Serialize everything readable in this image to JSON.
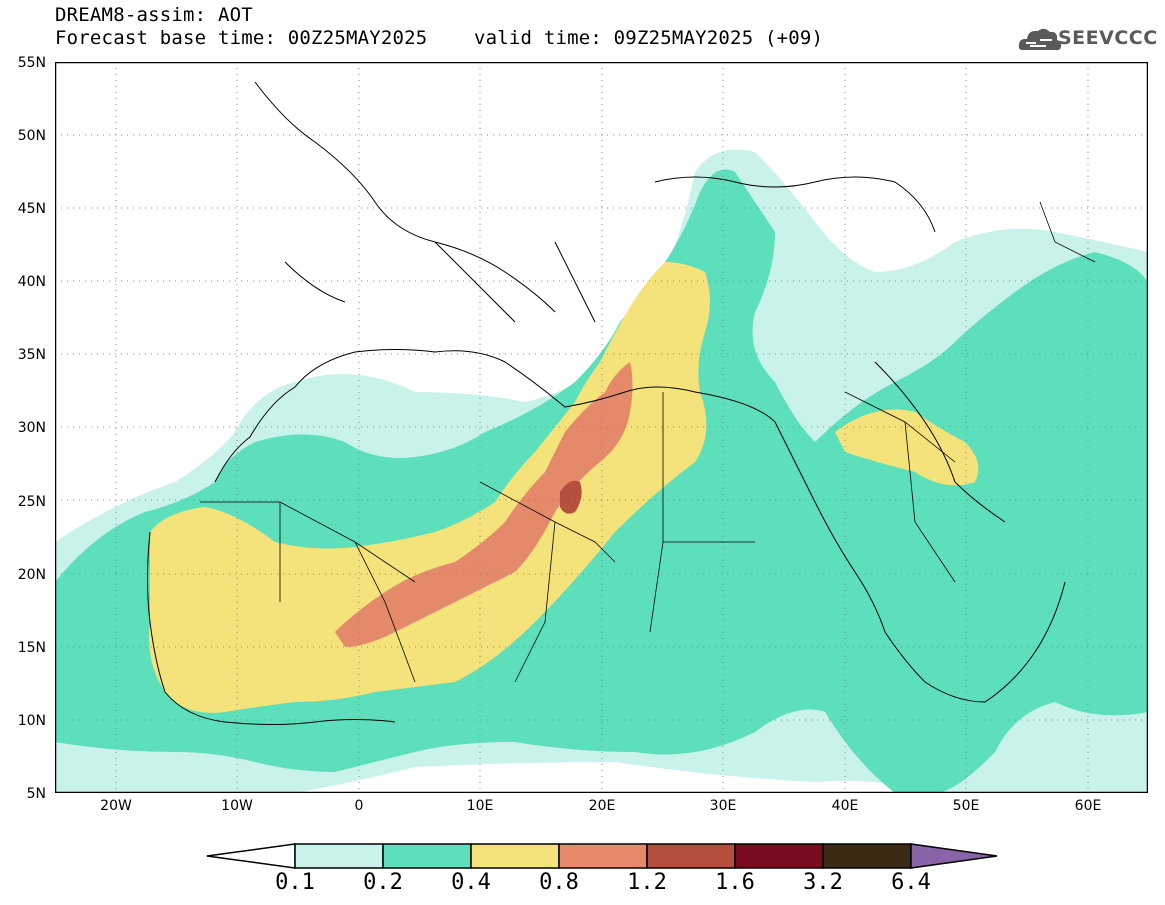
{
  "header": {
    "title_line1": "DREAM8-assim: AOT",
    "title_line2": "Forecast base time: 00Z25MAY2025    valid time: 09Z25MAY2025 (+09)"
  },
  "logo": {
    "text": "SEEVCCC",
    "icon": "cloud-icon"
  },
  "map": {
    "lat_ticks": [
      "55N",
      "50N",
      "45N",
      "40N",
      "35N",
      "30N",
      "25N",
      "20N",
      "15N",
      "10N",
      "5N"
    ],
    "lon_ticks": [
      "20W",
      "10W",
      "0",
      "10E",
      "20E",
      "30E",
      "40E",
      "50E",
      "60E"
    ],
    "lon_range": [
      -25,
      65
    ],
    "lat_range": [
      5,
      55
    ]
  },
  "colorbar": {
    "labels": [
      "0.1",
      "0.2",
      "0.4",
      "0.8",
      "1.2",
      "1.6",
      "3.2",
      "6.4"
    ],
    "colors": [
      "#ffffff",
      "#c9f2ea",
      "#5ddfbb",
      "#f4e27a",
      "#e48a6a",
      "#b5503f",
      "#7a0a1e",
      "#3b2a14",
      "#8a63a8"
    ]
  }
}
